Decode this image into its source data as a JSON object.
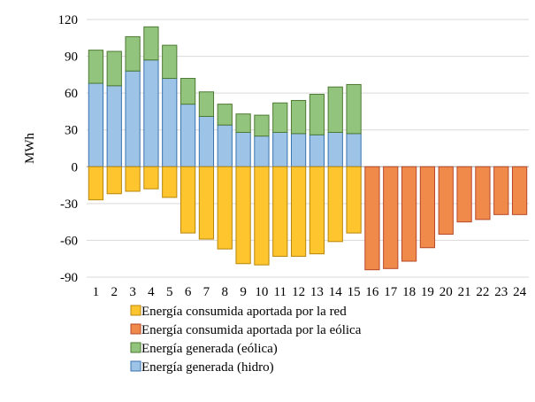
{
  "chart_data": {
    "type": "bar",
    "stacked": true,
    "title": "",
    "xlabel": "",
    "ylabel": "MWh",
    "ylim": [
      -90,
      120
    ],
    "yticks": [
      120,
      90,
      60,
      30,
      0,
      -30,
      -60,
      -90
    ],
    "grid": "horizontal",
    "legend_position": "bottom",
    "categories": [
      "1",
      "2",
      "3",
      "4",
      "5",
      "6",
      "7",
      "8",
      "9",
      "10",
      "11",
      "12",
      "13",
      "14",
      "15",
      "16",
      "17",
      "18",
      "19",
      "20",
      "21",
      "22",
      "23",
      "24"
    ],
    "series": [
      {
        "name": "Energía consumida aportada por la red",
        "color": "#FFC52E",
        "edge": "#B8860B",
        "values": [
          -27,
          -22,
          -20,
          -18,
          -25,
          -54,
          -59,
          -67,
          -79,
          -80,
          -73,
          -73,
          -71,
          -61,
          -54,
          0,
          0,
          0,
          0,
          0,
          0,
          0,
          0,
          0
        ]
      },
      {
        "name": "Energía consumida aportada por la eólica",
        "color": "#F08A4B",
        "edge": "#B5482A",
        "values": [
          0,
          0,
          0,
          0,
          0,
          0,
          0,
          0,
          0,
          0,
          0,
          0,
          0,
          0,
          0,
          -84,
          -83,
          -77,
          -66,
          -55,
          -45,
          -43,
          -39,
          -39
        ]
      },
      {
        "name": "Energía generada (eólica)",
        "color": "#93C47D",
        "edge": "#4E7A33",
        "values": [
          27,
          28,
          28,
          27,
          27,
          21,
          20,
          17,
          15,
          17,
          24,
          27,
          33,
          37,
          40,
          0,
          0,
          0,
          0,
          0,
          0,
          0,
          0,
          0
        ]
      },
      {
        "name": "Energía generada (hidro)",
        "color": "#9DC3E6",
        "edge": "#3A73B0",
        "values": [
          68,
          66,
          78,
          87,
          72,
          51,
          41,
          34,
          28,
          25,
          28,
          27,
          26,
          28,
          27,
          0,
          0,
          0,
          0,
          0,
          0,
          0,
          0,
          0
        ]
      }
    ],
    "legend_order": [
      0,
      1,
      2,
      3
    ]
  }
}
